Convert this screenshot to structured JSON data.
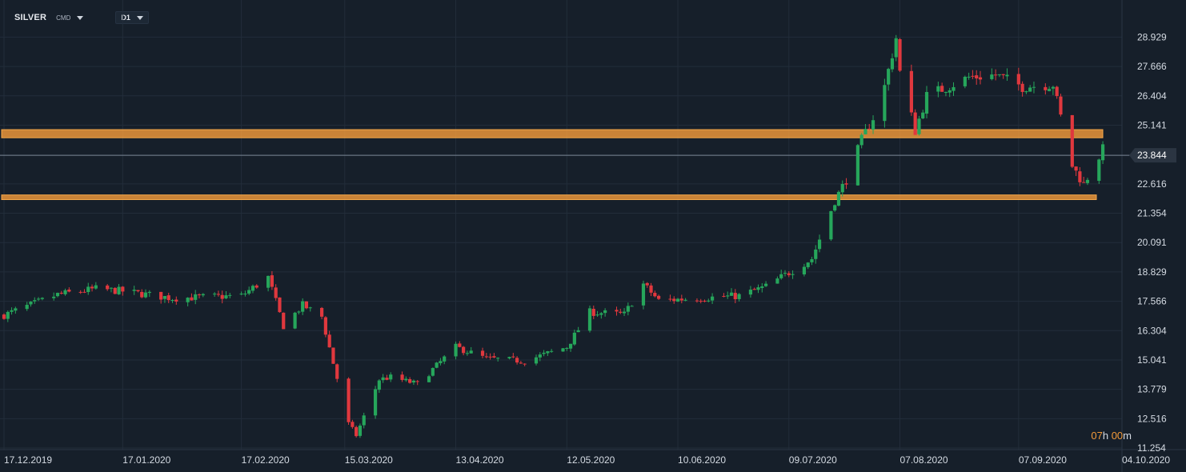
{
  "header": {
    "symbol": "SILVER",
    "category": "CMD",
    "timeframe": "D1"
  },
  "countdown": {
    "hours": "07",
    "hours_unit": "h",
    "minutes": "00",
    "minutes_unit": "m"
  },
  "colors": {
    "bull": "#26a65b",
    "bear": "#e0383e",
    "zone": "#f29a3a",
    "background": "#161f2a",
    "grid": "#222d3a",
    "text": "#d5dbe3"
  },
  "chart_data": {
    "type": "candlestick",
    "x_axis": {
      "labels": [
        "17.12.2019",
        "17.01.2020",
        "17.02.2020",
        "15.03.2020",
        "13.04.2020",
        "12.05.2020",
        "10.06.2020",
        "09.07.2020",
        "07.08.2020",
        "07.09.2020",
        "04.10.2020"
      ],
      "range": [
        "2019-12-17",
        "2020-10-04"
      ]
    },
    "y_axis": {
      "ticks": [
        "28.929",
        "27.666",
        "26.404",
        "25.141",
        "23.844",
        "22.616",
        "21.354",
        "20.091",
        "18.829",
        "17.566",
        "16.304",
        "15.041",
        "13.779",
        "12.516",
        "11.254"
      ],
      "range": [
        11.254,
        29.7
      ],
      "position": "right"
    },
    "current_price": "23.844",
    "resistance_zones": [
      {
        "low": 24.6,
        "high": 24.95
      },
      {
        "low": 21.94,
        "high": 22.14
      }
    ],
    "grid": true,
    "anchors": [
      [
        "2019-12-17",
        16.97
      ],
      [
        "2019-12-31",
        17.85
      ],
      [
        "2020-01-10",
        18.1
      ],
      [
        "2020-01-17",
        18.0
      ],
      [
        "2020-01-30",
        17.7
      ],
      [
        "2020-02-17",
        17.8
      ],
      [
        "2020-02-24",
        18.6
      ],
      [
        "2020-02-28",
        16.5
      ],
      [
        "2020-03-04",
        17.4
      ],
      [
        "2020-03-09",
        16.9
      ],
      [
        "2020-03-12",
        14.9
      ],
      [
        "2020-03-16",
        12.3
      ],
      [
        "2020-03-18",
        11.8
      ],
      [
        "2020-03-24",
        14.2
      ],
      [
        "2020-03-27",
        14.3
      ],
      [
        "2020-04-03",
        14.0
      ],
      [
        "2020-04-13",
        15.6
      ],
      [
        "2020-04-21",
        15.1
      ],
      [
        "2020-05-01",
        15.0
      ],
      [
        "2020-05-12",
        15.6
      ],
      [
        "2020-05-18",
        17.1
      ],
      [
        "2020-05-27",
        17.0
      ],
      [
        "2020-06-01",
        18.3
      ],
      [
        "2020-06-05",
        17.6
      ],
      [
        "2020-06-26",
        17.8
      ],
      [
        "2020-07-03",
        18.2
      ],
      [
        "2020-07-15",
        19.4
      ],
      [
        "2020-07-21",
        21.9
      ],
      [
        "2020-07-24",
        22.8
      ],
      [
        "2020-07-28",
        24.5
      ],
      [
        "2020-08-02",
        26.1
      ],
      [
        "2020-08-06",
        28.9
      ],
      [
        "2020-08-07",
        27.4
      ],
      [
        "2020-08-11",
        24.9
      ],
      [
        "2020-08-14",
        26.4
      ],
      [
        "2020-08-25",
        27.2
      ],
      [
        "2020-09-01",
        27.3
      ],
      [
        "2020-09-08",
        26.8
      ],
      [
        "2020-09-16",
        26.9
      ],
      [
        "2020-09-21",
        23.4
      ],
      [
        "2020-09-24",
        22.6
      ],
      [
        "2020-09-29",
        24.1
      ]
    ]
  }
}
